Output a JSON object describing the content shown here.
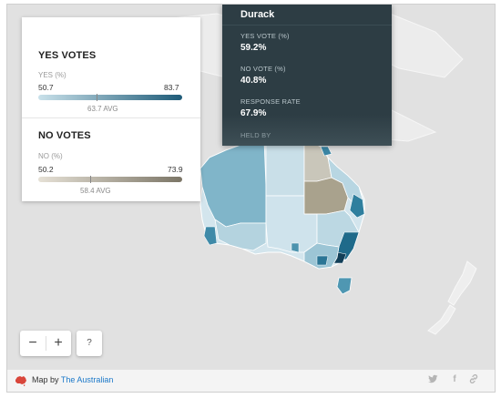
{
  "legend": {
    "yes_title": "YES VOTES",
    "yes_sub": "YES (%)",
    "yes_min": "50.7",
    "yes_max": "83.7",
    "yes_avg": "63.7 AVG",
    "no_title": "NO VOTES",
    "no_sub": "NO (%)",
    "no_min": "50.2",
    "no_max": "73.9",
    "no_avg": "58.4 AVG"
  },
  "tooltip": {
    "title": "Durack",
    "yes_label": "YES VOTE (%)",
    "yes_value": "59.2%",
    "no_label": "NO VOTE (%)",
    "no_value": "40.8%",
    "response_label": "RESPONSE RATE",
    "response_value": "67.9%",
    "held_label": "HELD BY"
  },
  "controls": {
    "zoom_out": "−",
    "zoom_in": "+",
    "help": "?"
  },
  "footer": {
    "credit_prefix": "Map by",
    "credit_link": "The Australian",
    "icons": [
      "australia-map-icon",
      "twitter-icon",
      "facebook-icon",
      "link-icon"
    ]
  },
  "colors": {
    "yes_low": "#c9e1ea",
    "yes_high": "#1e5b78",
    "no_low": "#e6e1d6",
    "no_high": "#7b7566",
    "tooltip_bg": "#2d3d44",
    "link": "#1c79c9"
  }
}
